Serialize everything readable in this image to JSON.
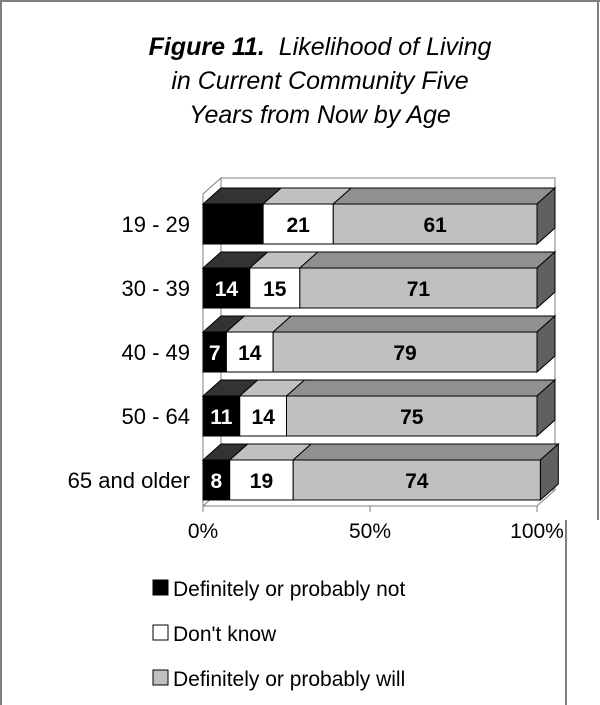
{
  "title": {
    "figure_label": "Figure 11.",
    "line1": "Likelihood of Living",
    "line2": "in Current Community Five",
    "line3": "Years from Now by Age"
  },
  "chart_data": {
    "type": "bar",
    "orientation": "horizontal",
    "stacked": true,
    "percent_stacked": true,
    "three_d": true,
    "categories": [
      "19 - 29",
      "30 - 39",
      "40 - 49",
      "50 - 64",
      "65 and older"
    ],
    "series": [
      {
        "name": "Definitely or probably not",
        "values": [
          18,
          14,
          7,
          11,
          8
        ],
        "labels": [
          "",
          "14",
          "7",
          "11",
          "8"
        ],
        "color": "#000000",
        "label_color": "#ffffff"
      },
      {
        "name": "Don't know",
        "values": [
          21,
          15,
          14,
          14,
          19
        ],
        "labels": [
          "21",
          "15",
          "14",
          "14",
          "19"
        ],
        "color": "#ffffff",
        "label_color": "#000000"
      },
      {
        "name": "Definitely or probably will",
        "values": [
          61,
          71,
          79,
          75,
          74
        ],
        "labels": [
          "61",
          "71",
          "79",
          "75",
          "74"
        ],
        "color": "#c0c0c0",
        "label_color": "#000000"
      }
    ],
    "xticks": [
      "0%",
      "50%",
      "100%"
    ],
    "xlim": [
      0,
      100
    ],
    "grid": false,
    "legend_position": "bottom"
  }
}
